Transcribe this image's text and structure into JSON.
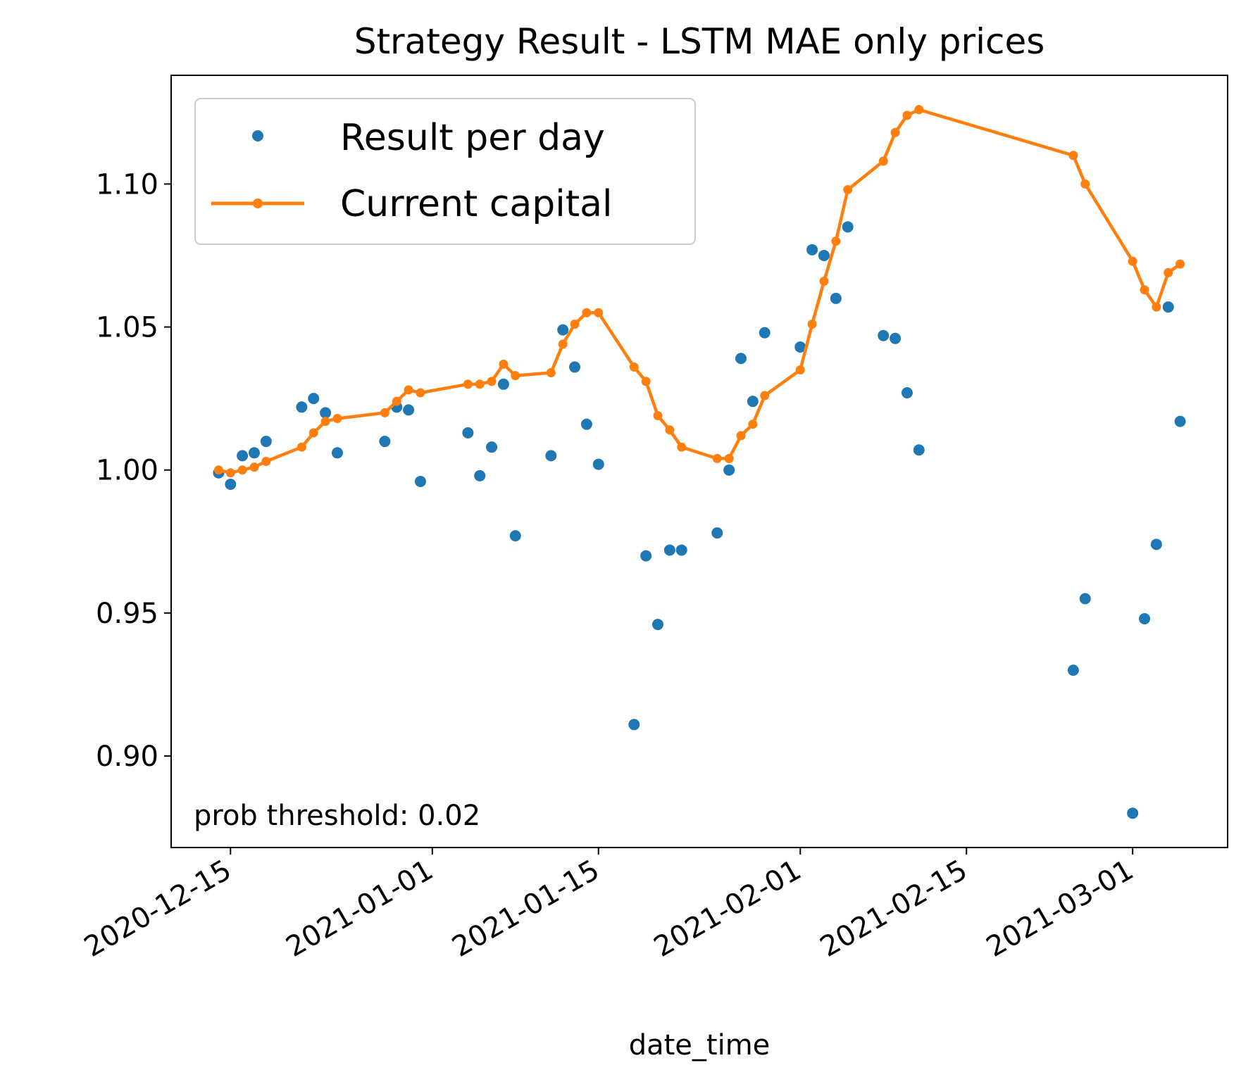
{
  "chart_data": {
    "type": "line",
    "title": "Strategy Result - LSTM MAE only prices",
    "xlabel": "date_time",
    "ylabel": "",
    "annotation": "prob threshold: 0.02",
    "xlim": [
      "2020-12-10",
      "2021-03-09"
    ],
    "ylim": [
      0.868,
      1.138
    ],
    "xticks": [
      "2020-12-15",
      "2021-01-01",
      "2021-01-15",
      "2021-02-01",
      "2021-02-15",
      "2021-03-01"
    ],
    "yticks": [
      0.9,
      0.95,
      1.0,
      1.05,
      1.1
    ],
    "ytick_labels": [
      "0.90",
      "0.95",
      "1.00",
      "1.05",
      "1.10"
    ],
    "grid": false,
    "legend_position": "upper-left",
    "series": [
      {
        "name": "Result per day",
        "style": "markers",
        "color": "#1f77b4",
        "x": [
          "2020-12-14",
          "2020-12-15",
          "2020-12-16",
          "2020-12-17",
          "2020-12-18",
          "2020-12-21",
          "2020-12-22",
          "2020-12-23",
          "2020-12-24",
          "2020-12-28",
          "2020-12-29",
          "2020-12-30",
          "2020-12-31",
          "2021-01-04",
          "2021-01-05",
          "2021-01-06",
          "2021-01-07",
          "2021-01-08",
          "2021-01-11",
          "2021-01-12",
          "2021-01-13",
          "2021-01-14",
          "2021-01-15",
          "2021-01-18",
          "2021-01-19",
          "2021-01-20",
          "2021-01-21",
          "2021-01-22",
          "2021-01-25",
          "2021-01-26",
          "2021-01-27",
          "2021-01-28",
          "2021-01-29",
          "2021-02-01",
          "2021-02-02",
          "2021-02-03",
          "2021-02-04",
          "2021-02-05",
          "2021-02-08",
          "2021-02-09",
          "2021-02-10",
          "2021-02-11",
          "2021-02-24",
          "2021-02-25",
          "2021-03-01",
          "2021-03-02",
          "2021-03-03",
          "2021-03-04",
          "2021-03-05"
        ],
        "y": [
          0.999,
          0.995,
          1.005,
          1.006,
          1.01,
          1.022,
          1.025,
          1.02,
          1.006,
          1.01,
          1.022,
          1.021,
          0.996,
          1.013,
          0.998,
          1.008,
          1.03,
          0.977,
          1.005,
          1.049,
          1.036,
          1.016,
          1.002,
          0.911,
          0.97,
          0.946,
          0.972,
          0.972,
          0.978,
          1.0,
          1.039,
          1.024,
          1.048,
          1.043,
          1.077,
          1.075,
          1.06,
          1.085,
          1.047,
          1.046,
          1.027,
          1.007,
          0.93,
          0.955,
          0.88,
          0.948,
          0.974,
          1.057,
          1.017
        ]
      },
      {
        "name": "Current capital",
        "style": "line-markers",
        "color": "#ff7f0e",
        "x": [
          "2020-12-14",
          "2020-12-15",
          "2020-12-16",
          "2020-12-17",
          "2020-12-18",
          "2020-12-21",
          "2020-12-22",
          "2020-12-23",
          "2020-12-24",
          "2020-12-28",
          "2020-12-29",
          "2020-12-30",
          "2020-12-31",
          "2021-01-04",
          "2021-01-05",
          "2021-01-06",
          "2021-01-07",
          "2021-01-08",
          "2021-01-11",
          "2021-01-12",
          "2021-01-13",
          "2021-01-14",
          "2021-01-15",
          "2021-01-18",
          "2021-01-19",
          "2021-01-20",
          "2021-01-21",
          "2021-01-22",
          "2021-01-25",
          "2021-01-26",
          "2021-01-27",
          "2021-01-28",
          "2021-01-29",
          "2021-02-01",
          "2021-02-02",
          "2021-02-03",
          "2021-02-04",
          "2021-02-05",
          "2021-02-08",
          "2021-02-09",
          "2021-02-10",
          "2021-02-11",
          "2021-02-24",
          "2021-02-25",
          "2021-03-01",
          "2021-03-02",
          "2021-03-03",
          "2021-03-04",
          "2021-03-05"
        ],
        "y": [
          1.0,
          0.999,
          1.0,
          1.001,
          1.003,
          1.008,
          1.013,
          1.017,
          1.018,
          1.02,
          1.024,
          1.028,
          1.027,
          1.03,
          1.03,
          1.031,
          1.037,
          1.033,
          1.034,
          1.044,
          1.051,
          1.055,
          1.055,
          1.036,
          1.031,
          1.019,
          1.014,
          1.008,
          1.004,
          1.004,
          1.012,
          1.016,
          1.026,
          1.035,
          1.051,
          1.066,
          1.08,
          1.098,
          1.108,
          1.118,
          1.124,
          1.126,
          1.11,
          1.1,
          1.073,
          1.063,
          1.057,
          1.069,
          1.072
        ]
      }
    ]
  }
}
